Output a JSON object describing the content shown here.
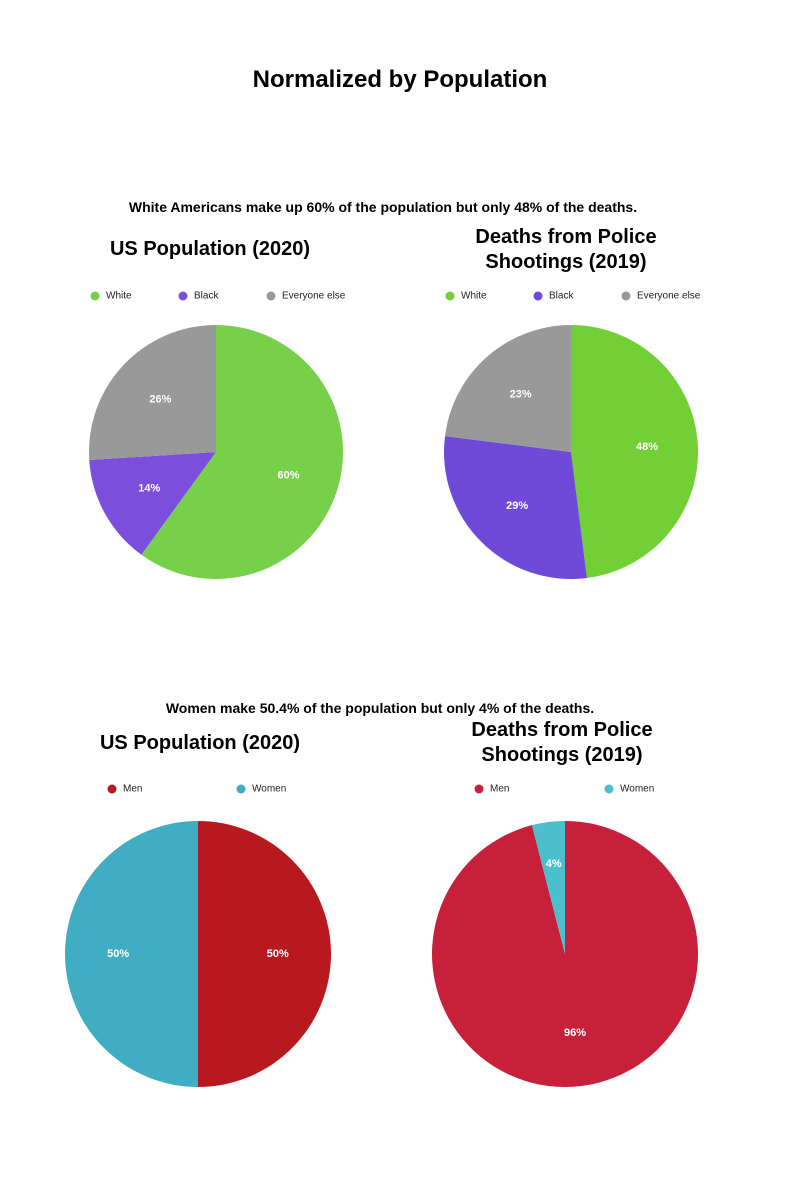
{
  "title": "Normalized by Population",
  "captions": [
    "White Americans make up 60% of the population but only 48% of the deaths.",
    "Women make 50.4% of the population but only 4% of the deaths."
  ],
  "chart_data": [
    {
      "type": "pie",
      "title": "US Population (2020)",
      "categories": [
        "White",
        "Black",
        "Everyone else"
      ],
      "values": [
        60,
        14,
        26
      ],
      "value_labels": [
        "60%",
        "14%",
        "26%"
      ],
      "colors": [
        "#77d04a",
        "#7b4fdc",
        "#999999"
      ]
    },
    {
      "type": "pie",
      "title": "Deaths from Police Shootings (2019)",
      "categories": [
        "White",
        "Black",
        "Everyone else"
      ],
      "values": [
        48,
        29,
        23
      ],
      "value_labels": [
        "48%",
        "29%",
        "23%"
      ],
      "colors": [
        "#72cf35",
        "#6f4ad8",
        "#999999"
      ]
    },
    {
      "type": "pie",
      "title": "US Population (2020)",
      "categories": [
        "Men",
        "Women"
      ],
      "values": [
        50,
        50
      ],
      "value_labels": [
        "50%",
        "50%"
      ],
      "colors": [
        "#b8191e",
        "#41adc3"
      ]
    },
    {
      "type": "pie",
      "title": "Deaths from Police Shootings (2019)",
      "categories": [
        "Men",
        "Women"
      ],
      "values": [
        96,
        4
      ],
      "value_labels": [
        "96%",
        "4%"
      ],
      "colors": [
        "#c7203b",
        "#4bc0cd"
      ]
    }
  ]
}
